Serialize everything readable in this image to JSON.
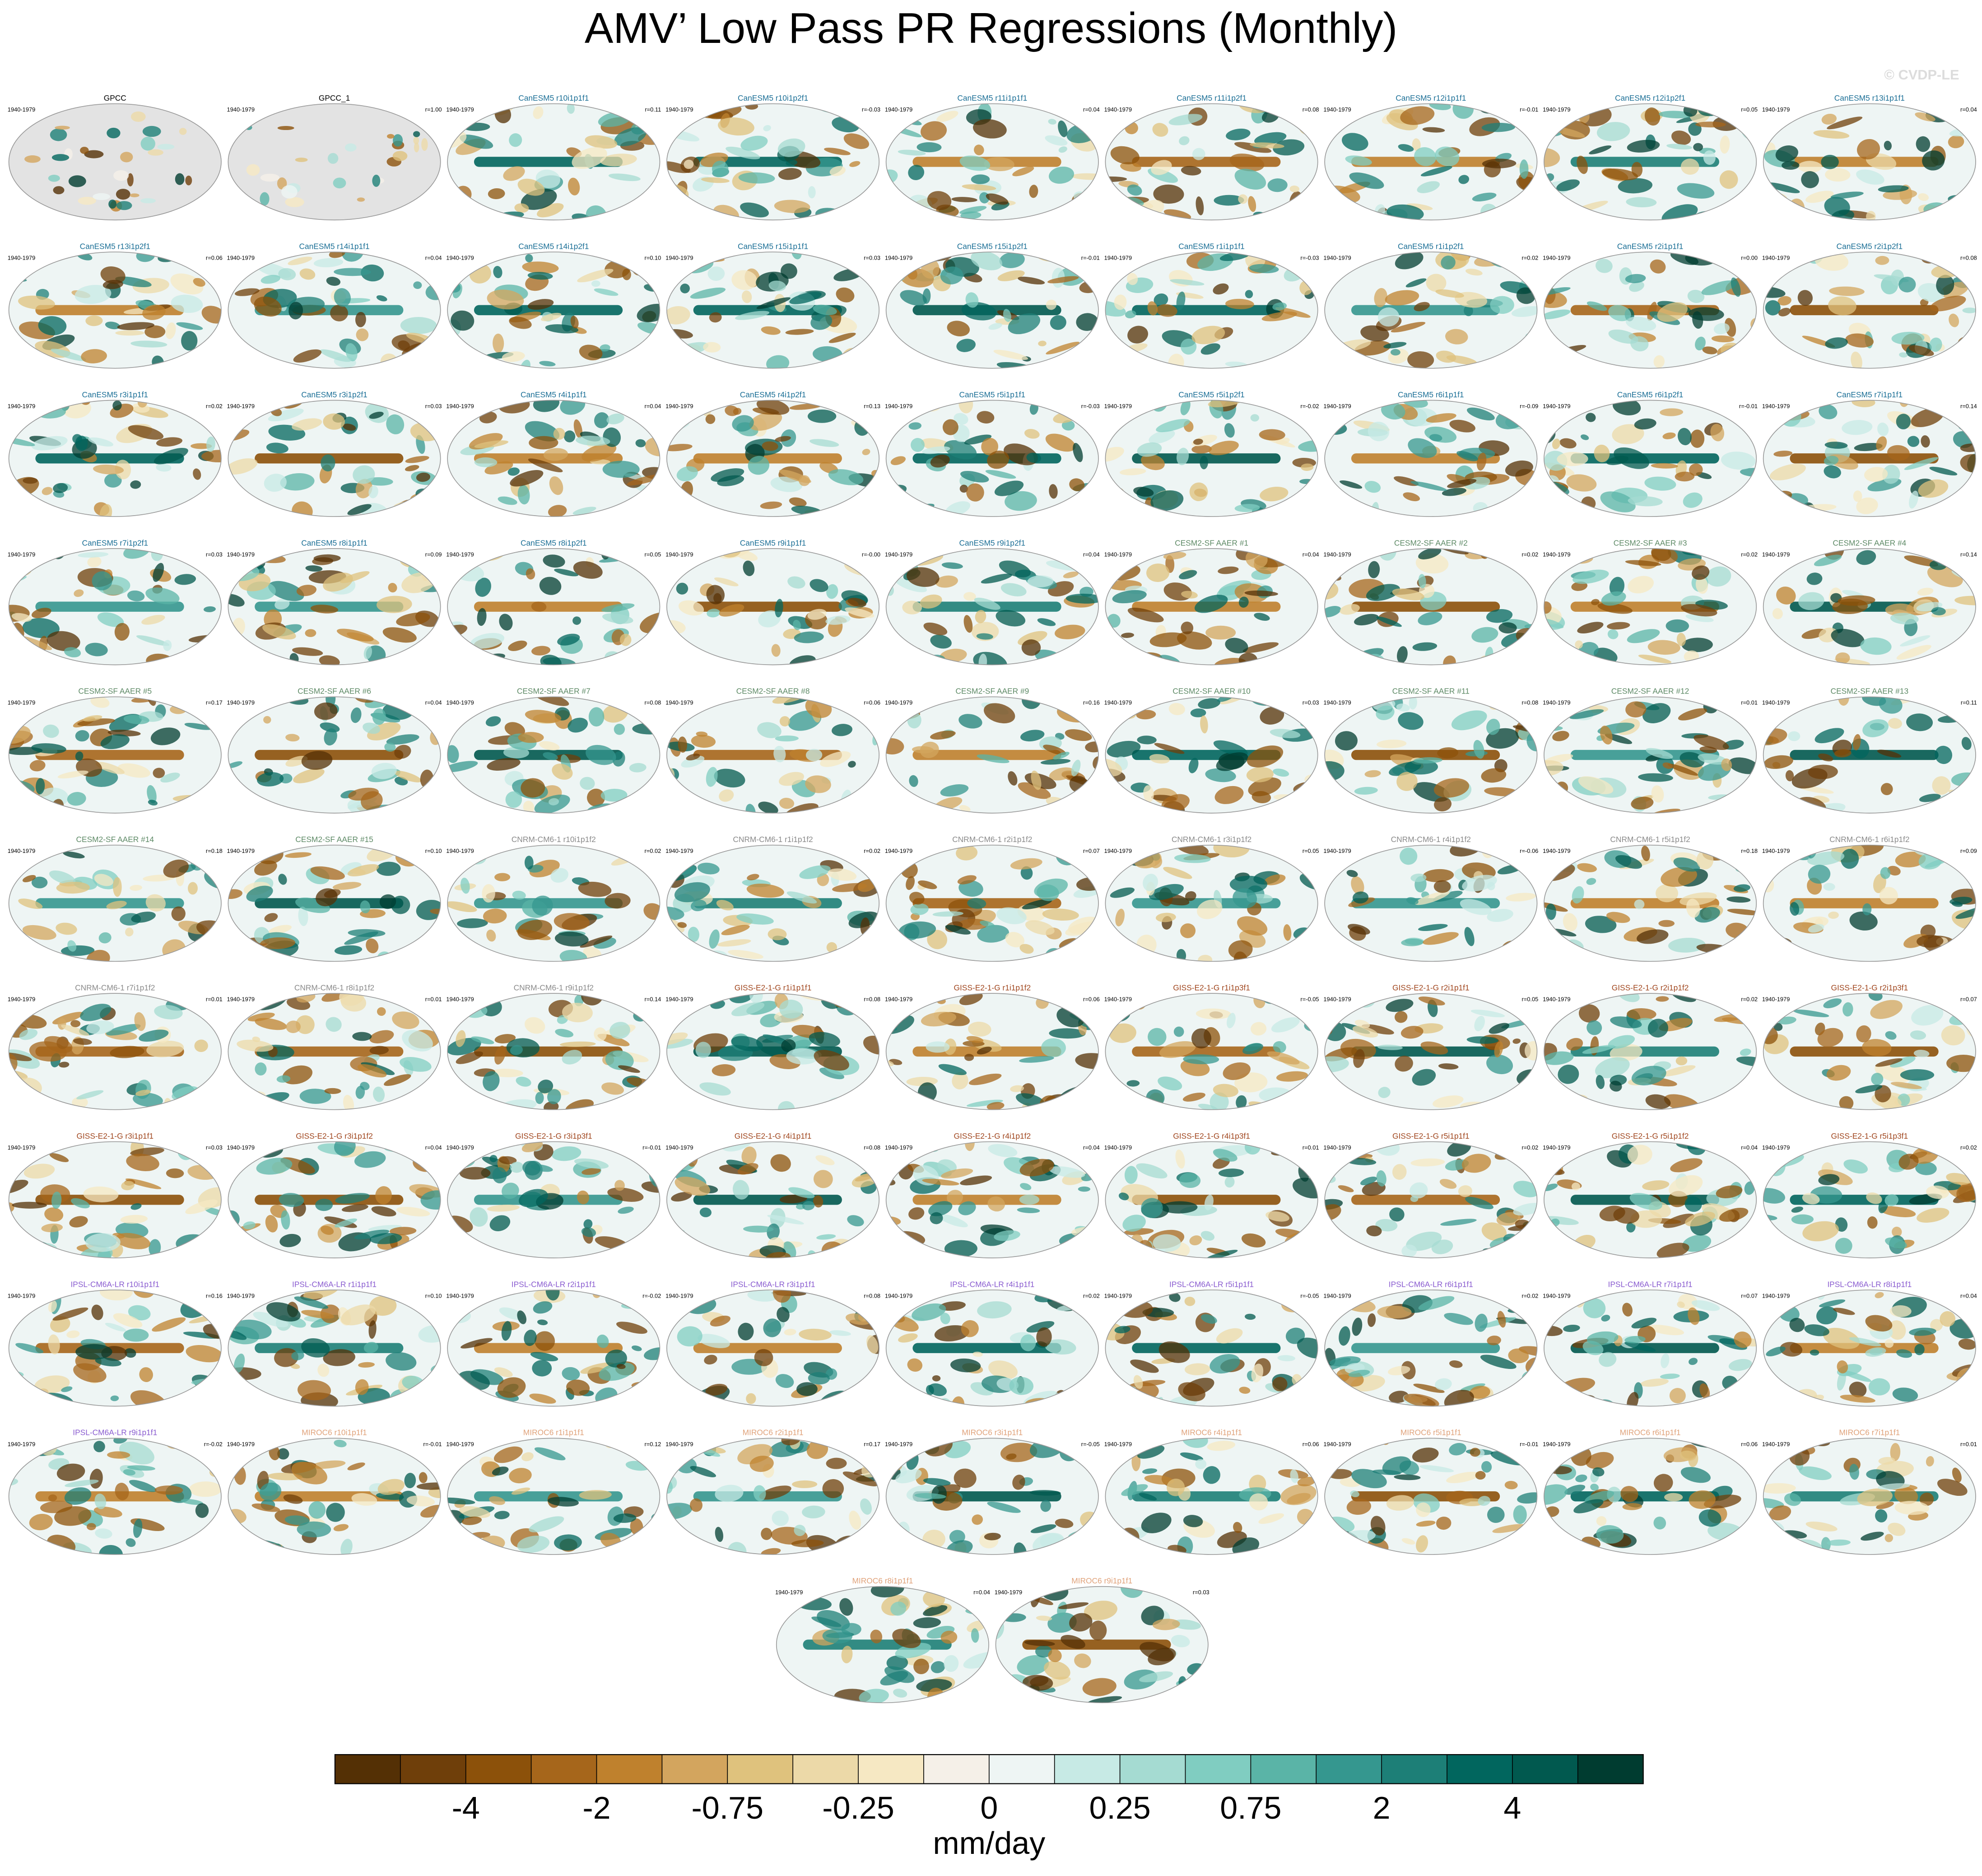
{
  "title": "AMV’ Low Pass PR Regressions (Monthly)",
  "watermark": "© CVDP-LE",
  "period": "1940-1979",
  "groups": [
    {
      "color": "#000000",
      "panels": [
        {
          "title": "GPCC"
        },
        {
          "title": "GPCC_1",
          "r": "r=1.00"
        }
      ]
    },
    {
      "color": "#1b6f96",
      "panels": [
        {
          "title": "CanESM5 r10i1p1f1",
          "r": "r=0.11"
        },
        {
          "title": "CanESM5 r10i1p2f1",
          "r": "r=-0.03"
        },
        {
          "title": "CanESM5 r11i1p1f1",
          "r": "r=0.04"
        },
        {
          "title": "CanESM5 r11i1p2f1",
          "r": "r=0.08"
        },
        {
          "title": "CanESM5 r12i1p1f1",
          "r": "r=-0.01"
        },
        {
          "title": "CanESM5 r12i1p2f1",
          "r": "r=0.05"
        },
        {
          "title": "CanESM5 r13i1p1f1",
          "r": "r=0.04"
        },
        {
          "title": "CanESM5 r13i1p2f1",
          "r": "r=0.06"
        },
        {
          "title": "CanESM5 r14i1p1f1",
          "r": "r=0.04"
        },
        {
          "title": "CanESM5 r14i1p2f1",
          "r": "r=0.10"
        },
        {
          "title": "CanESM5 r15i1p1f1",
          "r": "r=0.03"
        },
        {
          "title": "CanESM5 r15i1p2f1",
          "r": "r=-0.01"
        },
        {
          "title": "CanESM5 r1i1p1f1",
          "r": "r=-0.03"
        },
        {
          "title": "CanESM5 r1i1p2f1",
          "r": "r=0.02"
        },
        {
          "title": "CanESM5 r2i1p1f1",
          "r": "r=0.00"
        },
        {
          "title": "CanESM5 r2i1p2f1",
          "r": "r=0.08"
        },
        {
          "title": "CanESM5 r3i1p1f1",
          "r": "r=0.02"
        },
        {
          "title": "CanESM5 r3i1p2f1",
          "r": "r=0.03"
        },
        {
          "title": "CanESM5 r4i1p1f1",
          "r": "r=0.04"
        },
        {
          "title": "CanESM5 r4i1p2f1",
          "r": "r=0.13"
        },
        {
          "title": "CanESM5 r5i1p1f1",
          "r": "r=-0.03"
        },
        {
          "title": "CanESM5 r5i1p2f1",
          "r": "r=-0.02"
        },
        {
          "title": "CanESM5 r6i1p1f1",
          "r": "r=-0.09"
        },
        {
          "title": "CanESM5 r6i1p2f1",
          "r": "r=-0.01"
        },
        {
          "title": "CanESM5 r7i1p1f1",
          "r": "r=0.14"
        },
        {
          "title": "CanESM5 r7i1p2f1",
          "r": "r=0.03"
        },
        {
          "title": "CanESM5 r8i1p1f1",
          "r": "r=0.09"
        },
        {
          "title": "CanESM5 r8i1p2f1",
          "r": "r=0.05"
        },
        {
          "title": "CanESM5 r9i1p1f1",
          "r": "r=-0.00"
        },
        {
          "title": "CanESM5 r9i1p2f1",
          "r": "r=0.04"
        }
      ]
    },
    {
      "color": "#5e8a66",
      "panels": [
        {
          "title": "CESM2-SF AAER #1",
          "r": "r=0.04"
        },
        {
          "title": "CESM2-SF AAER #2",
          "r": "r=0.02"
        },
        {
          "title": "CESM2-SF AAER #3",
          "r": "r=0.02"
        },
        {
          "title": "CESM2-SF AAER #4",
          "r": "r=0.14"
        },
        {
          "title": "CESM2-SF AAER #5",
          "r": "r=0.17"
        },
        {
          "title": "CESM2-SF AAER #6",
          "r": "r=0.04"
        },
        {
          "title": "CESM2-SF AAER #7",
          "r": "r=0.08"
        },
        {
          "title": "CESM2-SF AAER #8",
          "r": "r=0.06"
        },
        {
          "title": "CESM2-SF AAER #9",
          "r": "r=0.16"
        },
        {
          "title": "CESM2-SF AAER #10",
          "r": "r=0.03"
        },
        {
          "title": "CESM2-SF AAER #11",
          "r": "r=0.08"
        },
        {
          "title": "CESM2-SF AAER #12",
          "r": "r=0.01"
        },
        {
          "title": "CESM2-SF AAER #13",
          "r": "r=0.11"
        },
        {
          "title": "CESM2-SF AAER #14",
          "r": "r=0.18"
        },
        {
          "title": "CESM2-SF AAER #15",
          "r": "r=0.10"
        }
      ]
    },
    {
      "color": "#8a8a8a",
      "panels": [
        {
          "title": "CNRM-CM6-1 r10i1p1f2",
          "r": "r=0.02"
        },
        {
          "title": "CNRM-CM6-1 r1i1p1f2",
          "r": "r=0.02"
        },
        {
          "title": "CNRM-CM6-1 r2i1p1f2",
          "r": "r=0.07"
        },
        {
          "title": "CNRM-CM6-1 r3i1p1f2",
          "r": "r=0.05"
        },
        {
          "title": "CNRM-CM6-1 r4i1p1f2",
          "r": "r=-0.06"
        },
        {
          "title": "CNRM-CM6-1 r5i1p1f2",
          "r": "r=0.18"
        },
        {
          "title": "CNRM-CM6-1 r6i1p1f2",
          "r": "r=0.09"
        },
        {
          "title": "CNRM-CM6-1 r7i1p1f2",
          "r": "r=0.01"
        },
        {
          "title": "CNRM-CM6-1 r8i1p1f2",
          "r": "r=0.01"
        },
        {
          "title": "CNRM-CM6-1 r9i1p1f2",
          "r": "r=0.14"
        }
      ]
    },
    {
      "color": "#a0461e",
      "panels": [
        {
          "title": "GISS-E2-1-G r1i1p1f1",
          "r": "r=0.08"
        },
        {
          "title": "GISS-E2-1-G r1i1p1f2",
          "r": "r=0.06"
        },
        {
          "title": "GISS-E2-1-G r1i1p3f1",
          "r": "r=-0.05"
        },
        {
          "title": "GISS-E2-1-G r2i1p1f1",
          "r": "r=0.05"
        },
        {
          "title": "GISS-E2-1-G r2i1p1f2",
          "r": "r=0.02"
        },
        {
          "title": "GISS-E2-1-G r2i1p3f1",
          "r": "r=0.07"
        },
        {
          "title": "GISS-E2-1-G r3i1p1f1",
          "r": "r=0.03"
        },
        {
          "title": "GISS-E2-1-G r3i1p1f2",
          "r": "r=0.04"
        },
        {
          "title": "GISS-E2-1-G r3i1p3f1",
          "r": "r=-0.01"
        },
        {
          "title": "GISS-E2-1-G r4i1p1f1",
          "r": "r=0.08"
        },
        {
          "title": "GISS-E2-1-G r4i1p1f2",
          "r": "r=0.04"
        },
        {
          "title": "GISS-E2-1-G r4i1p3f1",
          "r": "r=0.01"
        },
        {
          "title": "GISS-E2-1-G r5i1p1f1",
          "r": "r=0.02"
        },
        {
          "title": "GISS-E2-1-G r5i1p1f2",
          "r": "r=0.04"
        },
        {
          "title": "GISS-E2-1-G r5i1p3f1",
          "r": "r=0.02"
        }
      ]
    },
    {
      "color": "#8a5cd0",
      "panels": [
        {
          "title": "IPSL-CM6A-LR r10i1p1f1",
          "r": "r=0.16"
        },
        {
          "title": "IPSL-CM6A-LR r1i1p1f1",
          "r": "r=0.10"
        },
        {
          "title": "IPSL-CM6A-LR r2i1p1f1",
          "r": "r=-0.02"
        },
        {
          "title": "IPSL-CM6A-LR r3i1p1f1",
          "r": "r=0.08"
        },
        {
          "title": "IPSL-CM6A-LR r4i1p1f1",
          "r": "r=0.02"
        },
        {
          "title": "IPSL-CM6A-LR r5i1p1f1",
          "r": "r=-0.05"
        },
        {
          "title": "IPSL-CM6A-LR r6i1p1f1",
          "r": "r=0.02"
        },
        {
          "title": "IPSL-CM6A-LR r7i1p1f1",
          "r": "r=0.07"
        },
        {
          "title": "IPSL-CM6A-LR r8i1p1f1",
          "r": "r=0.04"
        },
        {
          "title": "IPSL-CM6A-LR r9i1p1f1",
          "r": "r=-0.02"
        }
      ]
    },
    {
      "color": "#e0a27a",
      "panels": [
        {
          "title": "MIROC6 r10i1p1f1",
          "r": "r=-0.01"
        },
        {
          "title": "MIROC6 r1i1p1f1",
          "r": "r=0.12"
        },
        {
          "title": "MIROC6 r2i1p1f1",
          "r": "r=0.17"
        },
        {
          "title": "MIROC6 r3i1p1f1",
          "r": "r=-0.05"
        },
        {
          "title": "MIROC6 r4i1p1f1",
          "r": "r=0.06"
        },
        {
          "title": "MIROC6 r5i1p1f1",
          "r": "r=-0.01"
        },
        {
          "title": "MIROC6 r6i1p1f1",
          "r": "r=0.06"
        },
        {
          "title": "MIROC6 r7i1p1f1",
          "r": "r=0.01"
        },
        {
          "title": "MIROC6 r8i1p1f1",
          "r": "r=0.04"
        },
        {
          "title": "MIROC6 r9i1p1f1",
          "r": "r=0.03"
        }
      ]
    }
  ],
  "colorbar": {
    "colors": [
      "#543005",
      "#6f3f0a",
      "#8c510a",
      "#a6661b",
      "#bf812d",
      "#d3a55e",
      "#dfc27d",
      "#ecd9a8",
      "#f6e8c3",
      "#f5f0e8",
      "#eef5f4",
      "#c7eae5",
      "#a5dbd2",
      "#80cdc1",
      "#5ab4a7",
      "#35978f",
      "#1d7f77",
      "#01665e",
      "#01594f",
      "#003c30"
    ],
    "labels": [
      "-4",
      "-2",
      "-0.75",
      "-0.25",
      "0",
      "0.25",
      "0.75",
      "2",
      "4"
    ],
    "units": "mm/day"
  }
}
